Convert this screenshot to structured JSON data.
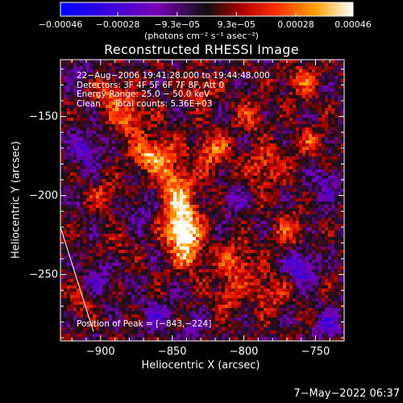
{
  "chart_data": {
    "type": "heatmap",
    "title": "Reconstructed RHESSI Image",
    "xlabel": "Heliocentric X (arcsec)",
    "ylabel": "Heliocentric Y (arcsec)",
    "xlim": [
      -928,
      -730
    ],
    "ylim": [
      -292,
      -114
    ],
    "x_ticks": [
      {
        "value": -900,
        "label": "−900"
      },
      {
        "value": -850,
        "label": "−850"
      },
      {
        "value": -800,
        "label": "−800"
      },
      {
        "value": -750,
        "label": "−750"
      }
    ],
    "y_ticks": [
      {
        "value": -150,
        "label": "−150"
      },
      {
        "value": -200,
        "label": "−200"
      },
      {
        "value": -250,
        "label": "−250"
      }
    ],
    "colorbar": {
      "range": [
        -0.00046,
        0.00046
      ],
      "unit_label": "(photons cm⁻² s⁻¹ asec⁻²)",
      "ticks": [
        {
          "value": -0.00046,
          "label": "−0.00046"
        },
        {
          "value": -0.00028,
          "label": "−0.00028"
        },
        {
          "value": -9.3e-05,
          "label": "−9.3e−05"
        },
        {
          "value": 9.3e-05,
          "label": "9.3e−05"
        },
        {
          "value": 0.00028,
          "label": "0.00028"
        },
        {
          "value": 0.00046,
          "label": "0.00046"
        }
      ]
    },
    "info_lines": [
      "22−Aug−2006 19:41:28.000 to 19:44:48.000",
      "Detectors: 3F 4F 5F 6F 7F 8F, Att 0",
      "Energy Range: 25.0 − 50.0 keV",
      "Clean     Total counts: 5.36E+03"
    ],
    "peak_label": "Position of Peak = [−843,−224]",
    "peak": [
      -843,
      -224
    ],
    "peak_marker_from": [
      -928,
      -220
    ],
    "peak_marker_to": [
      -905,
      -286
    ],
    "blobs": [
      {
        "x": -843,
        "y": -224,
        "amp": 0.00046,
        "s": 7
      },
      {
        "x": -845,
        "y": -210,
        "amp": 0.00034,
        "s": 10
      },
      {
        "x": -848,
        "y": -192,
        "amp": 0.00024,
        "s": 8
      },
      {
        "x": -838,
        "y": -238,
        "amp": 0.00026,
        "s": 8
      },
      {
        "x": -858,
        "y": -175,
        "amp": 0.00028,
        "s": 8
      },
      {
        "x": -880,
        "y": -150,
        "amp": 0.00026,
        "s": 9
      },
      {
        "x": -870,
        "y": -175,
        "amp": 0.0002,
        "s": 7
      },
      {
        "x": -895,
        "y": -135,
        "amp": 0.00022,
        "s": 7
      },
      {
        "x": -822,
        "y": -172,
        "amp": 0.00024,
        "s": 9
      },
      {
        "x": -830,
        "y": -133,
        "amp": 0.0002,
        "s": 7
      },
      {
        "x": -805,
        "y": -243,
        "amp": 0.00024,
        "s": 9
      },
      {
        "x": -812,
        "y": -265,
        "amp": 0.00018,
        "s": 7
      },
      {
        "x": -785,
        "y": -182,
        "amp": 0.00021,
        "s": 9
      },
      {
        "x": -795,
        "y": -150,
        "amp": 0.00017,
        "s": 7
      },
      {
        "x": -760,
        "y": -128,
        "amp": 0.0002,
        "s": 8
      },
      {
        "x": -753,
        "y": -165,
        "amp": 0.00016,
        "s": 7
      },
      {
        "x": -782,
        "y": -262,
        "amp": 0.0002,
        "s": 8
      },
      {
        "x": -768,
        "y": -222,
        "amp": 0.00018,
        "s": 8
      },
      {
        "x": -888,
        "y": -235,
        "amp": 0.00012,
        "s": 6
      },
      {
        "x": -915,
        "y": -268,
        "amp": 0.00013,
        "s": 6
      },
      {
        "x": -898,
        "y": -200,
        "amp": 0.00016,
        "s": 7
      },
      {
        "x": -910,
        "y": -170,
        "amp": -0.00024,
        "s": 8
      },
      {
        "x": -870,
        "y": -210,
        "amp": -0.00018,
        "s": 7
      },
      {
        "x": -760,
        "y": -245,
        "amp": -0.00032,
        "s": 7
      },
      {
        "x": -742,
        "y": -282,
        "amp": -0.00026,
        "s": 6
      },
      {
        "x": -862,
        "y": -277,
        "amp": -0.0002,
        "s": 7
      },
      {
        "x": -900,
        "y": -252,
        "amp": -0.00018,
        "s": 7
      },
      {
        "x": -742,
        "y": -192,
        "amp": -0.0002,
        "s": 7
      },
      {
        "x": -808,
        "y": -202,
        "amp": -0.00014,
        "s": 6
      },
      {
        "x": -915,
        "y": -120,
        "amp": -0.00014,
        "s": 6
      },
      {
        "x": -835,
        "y": -285,
        "amp": -0.00016,
        "s": 6
      }
    ]
  },
  "footer": {
    "timestamp": "7−May−2022 06:37"
  }
}
